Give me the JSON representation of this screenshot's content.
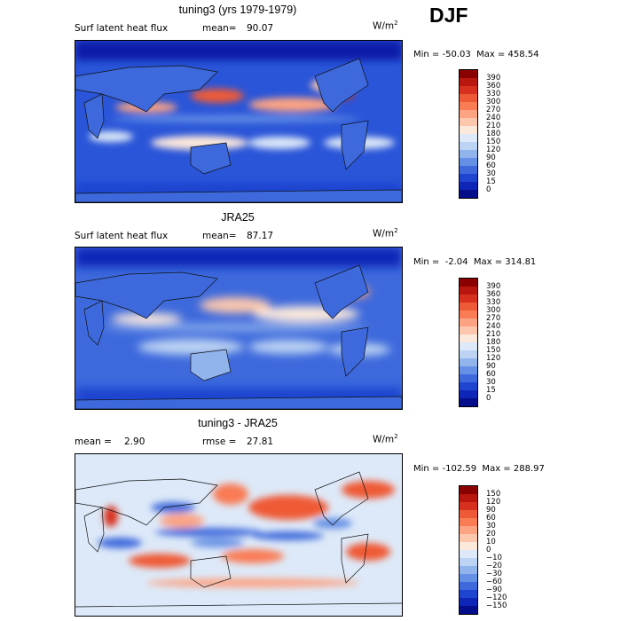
{
  "season": "DJF",
  "panels": [
    {
      "title": "tuning3 (yrs 1979-1979)",
      "left_label": "Surf latent heat flux",
      "stat_label": "mean=",
      "stat_value": "90.07",
      "units": "W/m",
      "units_exp": "2",
      "minmax": "Min = -50.03  Max = 458.54",
      "colorbar_labels": [
        "390",
        "360",
        "330",
        "300",
        "270",
        "240",
        "210",
        "180",
        "150",
        "120",
        "90",
        "60",
        "30",
        "15",
        "0"
      ],
      "colorbar_colors": [
        "#8b0000",
        "#b8160f",
        "#d7301f",
        "#ef5a36",
        "#f97c55",
        "#fca383",
        "#fdc7ad",
        "#fde9dc",
        "#dde9f8",
        "#bcd3f3",
        "#91b4ec",
        "#6590e5",
        "#3d69dc",
        "#1f44d0",
        "#0f25b8",
        "#040d8a"
      ]
    },
    {
      "title": "JRA25",
      "left_label": "Surf latent heat flux",
      "stat_label": "mean=",
      "stat_value": "87.17",
      "units": "W/m",
      "units_exp": "2",
      "minmax": "Min =  -2.04  Max = 314.81",
      "colorbar_labels": [
        "390",
        "360",
        "330",
        "300",
        "270",
        "240",
        "210",
        "180",
        "150",
        "120",
        "90",
        "60",
        "30",
        "15",
        "0"
      ],
      "colorbar_colors": [
        "#8b0000",
        "#b8160f",
        "#d7301f",
        "#ef5a36",
        "#f97c55",
        "#fca383",
        "#fdc7ad",
        "#fde9dc",
        "#dde9f8",
        "#bcd3f3",
        "#91b4ec",
        "#6590e5",
        "#3d69dc",
        "#1f44d0",
        "#0f25b8",
        "#040d8a"
      ]
    },
    {
      "title": "tuning3 - JRA25",
      "left_label": "mean =",
      "left_value": "2.90",
      "stat_label": "rmse =",
      "stat_value": "27.81",
      "units": "W/m",
      "units_exp": "2",
      "minmax": "Min = -102.59  Max = 288.97",
      "colorbar_labels": [
        "150",
        "120",
        "90",
        "60",
        "30",
        "20",
        "10",
        "0",
        "−10",
        "−20",
        "−30",
        "−60",
        "−90",
        "−120",
        "−150"
      ],
      "colorbar_colors": [
        "#8b0000",
        "#b8160f",
        "#d7301f",
        "#ef5a36",
        "#f97c55",
        "#fca383",
        "#fdc7ad",
        "#fde9dc",
        "#dde9f8",
        "#bcd3f3",
        "#91b4ec",
        "#6590e5",
        "#3d69dc",
        "#1f44d0",
        "#0f25b8",
        "#040d8a"
      ]
    }
  ]
}
